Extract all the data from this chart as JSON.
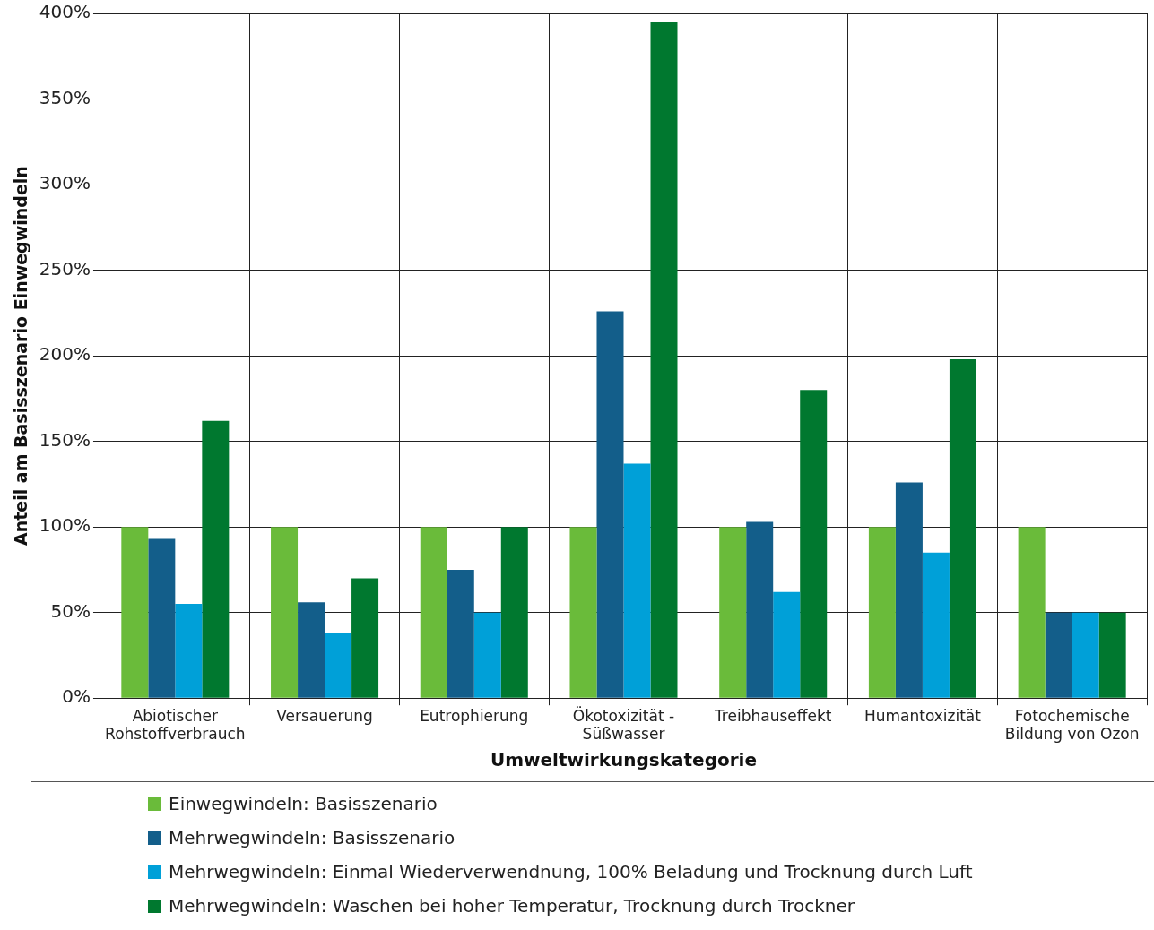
{
  "chart_data": {
    "type": "bar",
    "xlabel": "Umweltwirkungskategorie",
    "ylabel": "Anteil am Basisszenario Einwegwindeln",
    "categories": [
      "Abiotischer Rohstoffverbrauch",
      "Versauerung",
      "Eutrophierung",
      "Ökotoxizität - Süßwasser",
      "Treibhauseffekt",
      "Humantoxizität",
      "Fotochemische Bildung von Ozon"
    ],
    "series": [
      {
        "name": "Einwegwindeln: Basisszenario",
        "color": "#6abb3a",
        "values": [
          100,
          100,
          100,
          100,
          100,
          100,
          100
        ]
      },
      {
        "name": "Mehrwegwindeln: Basisszenario",
        "color": "#135e8a",
        "values": [
          93,
          56,
          75,
          226,
          103,
          126,
          50
        ]
      },
      {
        "name": "Mehrwegwindeln: Einmal Wiederverwendnung, 100% Beladung und Trocknung durch Luft",
        "color": "#00a0d8",
        "values": [
          55,
          38,
          50,
          137,
          62,
          85,
          50
        ]
      },
      {
        "name": "Mehrwegwindeln: Waschen bei hoher Temperatur, Trocknung durch Trockner",
        "color": "#00782f",
        "values": [
          162,
          70,
          100,
          395,
          180,
          198,
          50
        ]
      }
    ],
    "ylim": [
      0,
      400
    ],
    "yticks": [
      {
        "value": 0,
        "label": "0%"
      },
      {
        "value": 50,
        "label": "50%"
      },
      {
        "value": 100,
        "label": "100%"
      },
      {
        "value": 150,
        "label": "150%"
      },
      {
        "value": 200,
        "label": "200%"
      },
      {
        "value": 250,
        "label": "250%"
      },
      {
        "value": 300,
        "label": "300%"
      },
      {
        "value": 350,
        "label": "350%"
      },
      {
        "value": 400,
        "label": "400%"
      }
    ],
    "grid": true,
    "legend": "bottom"
  }
}
